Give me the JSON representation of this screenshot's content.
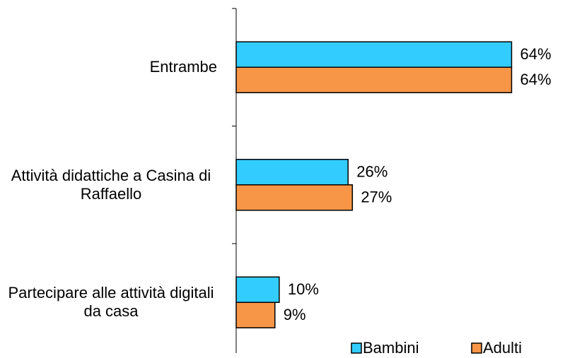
{
  "chart_data": {
    "type": "hbar",
    "categories": [
      "Entrambe",
      "Attività didattiche a Casina di Raffaello",
      "Partecipare alle attività digitali da casa"
    ],
    "series": [
      {
        "name": "Bambini",
        "color": "#33ccff",
        "values": [
          64,
          26,
          10
        ],
        "value_labels": [
          "64%",
          "26%",
          "10%"
        ]
      },
      {
        "name": "Adulti",
        "color": "#f79646",
        "values": [
          64,
          27,
          9
        ],
        "value_labels": [
          "64%",
          "27%",
          "9%"
        ]
      }
    ],
    "xlim": [
      0,
      70
    ],
    "legend": "bottom-right"
  }
}
